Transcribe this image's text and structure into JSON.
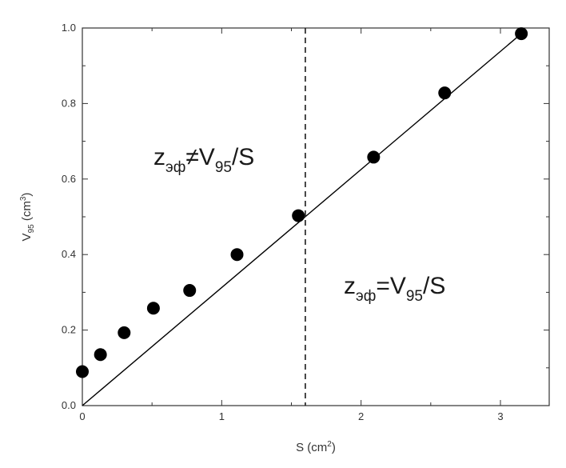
{
  "chart_data": {
    "type": "scatter",
    "xlim": [
      0,
      3.35
    ],
    "ylim": [
      0,
      1.0
    ],
    "x_ticks": [
      {
        "value": 0,
        "label": "0"
      },
      {
        "value": 1,
        "label": "1"
      },
      {
        "value": 2,
        "label": "2"
      },
      {
        "value": 3,
        "label": "3"
      }
    ],
    "y_ticks": [
      {
        "value": 0,
        "label": "0.0"
      },
      {
        "value": 0.2,
        "label": "0.2"
      },
      {
        "value": 0.4,
        "label": "0.4"
      },
      {
        "value": 0.6,
        "label": "0.6"
      },
      {
        "value": 0.8,
        "label": "0.8"
      },
      {
        "value": 1.0,
        "label": "1.0"
      }
    ],
    "xlabel": {
      "main": "S (cm",
      "sup": "2",
      "close": ")"
    },
    "ylabel": {
      "main": "V",
      "sub": "95",
      "mid": " (cm",
      "sup": "3",
      "close": ")"
    },
    "points": [
      {
        "x": 0.0,
        "y": 0.09
      },
      {
        "x": 0.13,
        "y": 0.135
      },
      {
        "x": 0.3,
        "y": 0.193
      },
      {
        "x": 0.51,
        "y": 0.258
      },
      {
        "x": 0.77,
        "y": 0.305
      },
      {
        "x": 1.11,
        "y": 0.4
      },
      {
        "x": 1.55,
        "y": 0.503
      },
      {
        "x": 2.09,
        "y": 0.658
      },
      {
        "x": 2.6,
        "y": 0.828
      },
      {
        "x": 3.15,
        "y": 0.985
      }
    ],
    "fit_line": {
      "x": [
        0,
        3.15
      ],
      "y": [
        0,
        0.985
      ]
    },
    "divider_x": 1.6,
    "grid": false,
    "annotations": [
      {
        "id": "left-region",
        "z": "z",
        "sub1": "эф",
        "rel": "≠V",
        "sub2": "95",
        "tail": "/S"
      },
      {
        "id": "right-region",
        "z": "z",
        "sub1": "эф",
        "rel": "=V",
        "sub2": "95",
        "tail": "/S"
      }
    ],
    "colors": {
      "axis": "#333333",
      "marker": "#000000",
      "line": "#000000"
    }
  }
}
